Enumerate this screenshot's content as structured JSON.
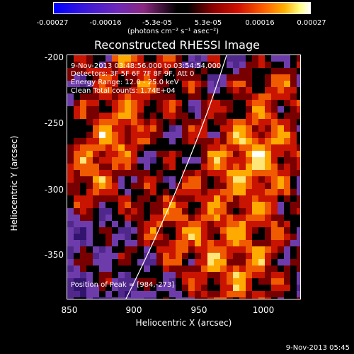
{
  "colorbar": {
    "ticks": [
      "-0.00027",
      "-0.00016",
      "-5.3e-05",
      "5.3e-05",
      "0.00016",
      "0.00027"
    ],
    "units": "(photons cm⁻² s⁻¹ asec⁻²)"
  },
  "title": "Reconstructed RHESSI Image",
  "annotations": {
    "time_range": "9-Nov-2013 03:48:56.000 to 03:54:54.000",
    "detectors": "Detectors: 3F 5F 6F 7F 8F 9F, Att 0",
    "energy": "Energy Range: 12.0 - 25.0 keV",
    "clean": "Clean    Total counts: 1.74E+04",
    "peak": "Position of Peak = [984,-273]"
  },
  "axes": {
    "xlabel": "Heliocentric X (arcsec)",
    "ylabel": "Heliocentric Y (arcsec)",
    "xticks": [
      "850",
      "900",
      "950",
      "1000"
    ],
    "yticks": [
      "-200",
      "-250",
      "-300",
      "-350"
    ]
  },
  "footer": "9-Nov-2013 05:45"
}
